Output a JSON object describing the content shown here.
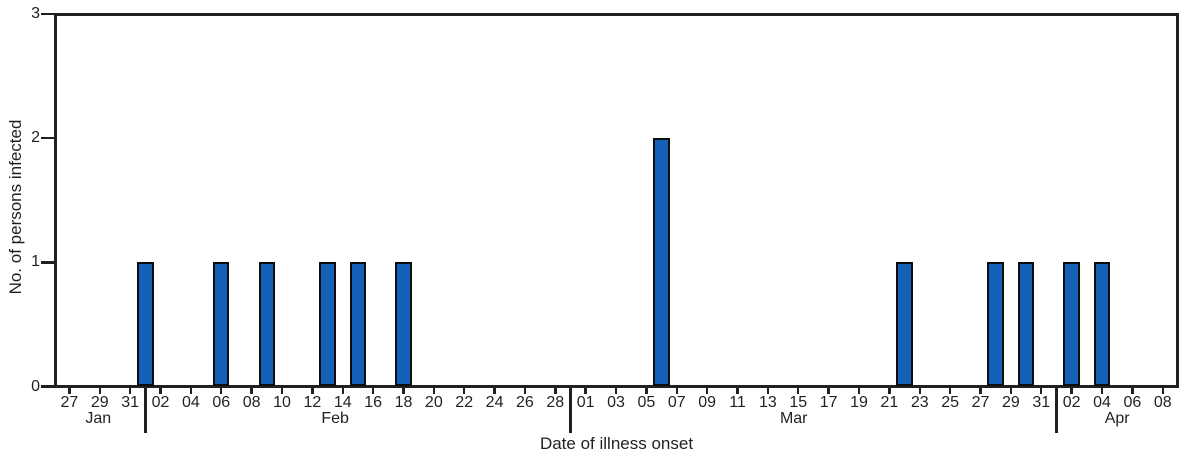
{
  "figure": {
    "background": "#ffffff",
    "axis_color": "#231f20",
    "text_color": "#231f20"
  },
  "chart_data": {
    "type": "bar",
    "title": "",
    "xlabel": "Date of illness onset",
    "ylabel": "No. of persons infected",
    "ylim": [
      0,
      3
    ],
    "yticks": [
      0,
      1,
      2,
      3
    ],
    "bar_fill": "#1560b7",
    "bar_outline": "#0d0d0d",
    "axis_color": "#231f20",
    "timeline": {
      "start_date": "Jan 27",
      "end_date": "Apr 08",
      "total_day_slots": 73
    },
    "xticks": [
      {
        "label": "27",
        "day": 0
      },
      {
        "label": "29",
        "day": 2
      },
      {
        "label": "31",
        "day": 4
      },
      {
        "label": "02",
        "day": 6
      },
      {
        "label": "04",
        "day": 8
      },
      {
        "label": "06",
        "day": 10
      },
      {
        "label": "08",
        "day": 12
      },
      {
        "label": "10",
        "day": 14
      },
      {
        "label": "12",
        "day": 16
      },
      {
        "label": "14",
        "day": 18
      },
      {
        "label": "16",
        "day": 20
      },
      {
        "label": "18",
        "day": 22
      },
      {
        "label": "20",
        "day": 24
      },
      {
        "label": "22",
        "day": 26
      },
      {
        "label": "24",
        "day": 28
      },
      {
        "label": "26",
        "day": 30
      },
      {
        "label": "28",
        "day": 32
      },
      {
        "label": "01",
        "day": 34
      },
      {
        "label": "03",
        "day": 36
      },
      {
        "label": "05",
        "day": 38
      },
      {
        "label": "07",
        "day": 40
      },
      {
        "label": "09",
        "day": 42
      },
      {
        "label": "11",
        "day": 44
      },
      {
        "label": "13",
        "day": 46
      },
      {
        "label": "15",
        "day": 48
      },
      {
        "label": "17",
        "day": 50
      },
      {
        "label": "19",
        "day": 52
      },
      {
        "label": "21",
        "day": 54
      },
      {
        "label": "23",
        "day": 56
      },
      {
        "label": "25",
        "day": 58
      },
      {
        "label": "27",
        "day": 60
      },
      {
        "label": "29",
        "day": 62
      },
      {
        "label": "31",
        "day": 64
      },
      {
        "label": "02",
        "day": 66
      },
      {
        "label": "04",
        "day": 68
      },
      {
        "label": "06",
        "day": 70
      },
      {
        "label": "08",
        "day": 72
      }
    ],
    "months": [
      {
        "label": "Jan",
        "label_day": 1.9
      },
      {
        "label": "Feb",
        "label_day": 17.5
      },
      {
        "label": "Mar",
        "label_day": 47.7
      },
      {
        "label": "Apr",
        "label_day": 69.0
      }
    ],
    "month_dividers_day": [
      5,
      33,
      65
    ],
    "bars": [
      {
        "date": "Feb 01",
        "day": 5,
        "value": 1
      },
      {
        "date": "Feb 06",
        "day": 10,
        "value": 1
      },
      {
        "date": "Feb 09",
        "day": 13,
        "value": 1
      },
      {
        "date": "Feb 13",
        "day": 17,
        "value": 1
      },
      {
        "date": "Feb 15",
        "day": 19,
        "value": 1
      },
      {
        "date": "Feb 18",
        "day": 22,
        "value": 1
      },
      {
        "date": "Mar 06",
        "day": 39,
        "value": 2
      },
      {
        "date": "Mar 22",
        "day": 55,
        "value": 1
      },
      {
        "date": "Mar 28",
        "day": 61,
        "value": 1
      },
      {
        "date": "Mar 30",
        "day": 63,
        "value": 1
      },
      {
        "date": "Apr 02",
        "day": 66,
        "value": 1
      },
      {
        "date": "Apr 04",
        "day": 68,
        "value": 1
      }
    ]
  }
}
